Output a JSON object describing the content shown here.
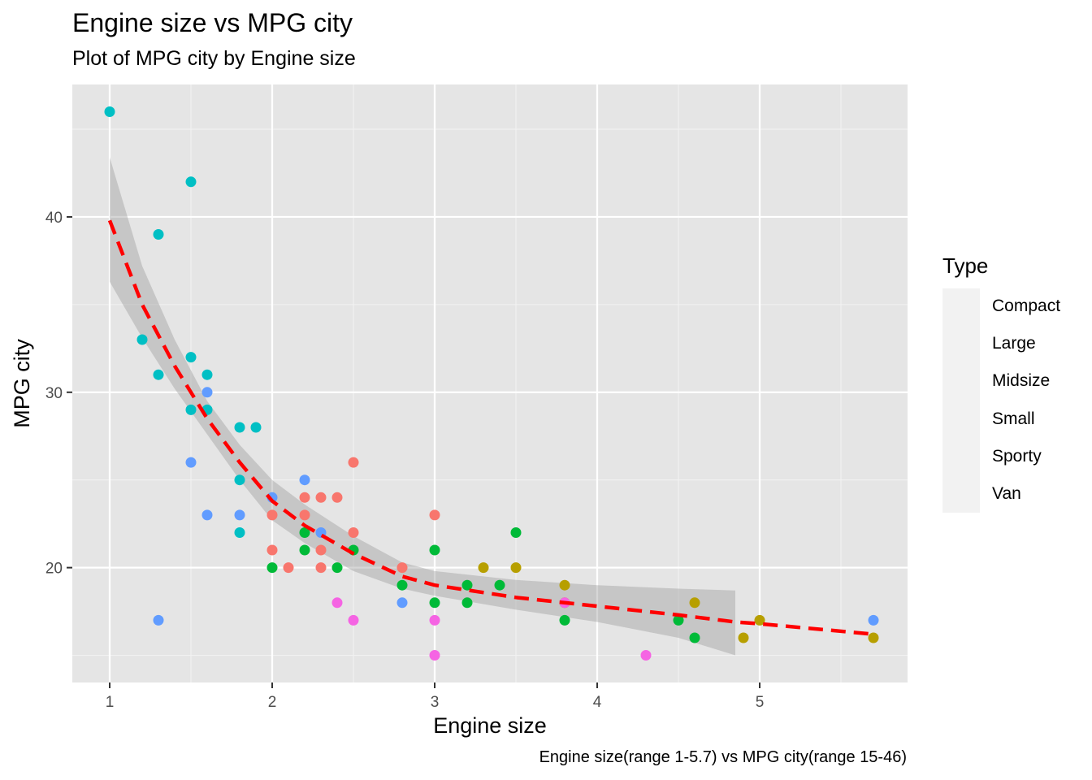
{
  "chart_data": {
    "type": "scatter",
    "title": "Engine size vs MPG city",
    "subtitle": "Plot of MPG city by Engine size",
    "caption": "Engine size(range 1-5.7) vs MPG city(range 15-46)",
    "xlabel": "Engine size",
    "ylabel": "MPG city",
    "xlim": [
      0.77,
      5.91
    ],
    "ylim": [
      13.45,
      47.55
    ],
    "x_ticks": [
      1,
      2,
      3,
      4,
      5
    ],
    "y_ticks": [
      20,
      30,
      40
    ],
    "grid": true,
    "legend": {
      "title": "Type",
      "position": "right",
      "entries": [
        {
          "label": "Compact",
          "color": "#F8766D"
        },
        {
          "label": "Large",
          "color": "#B79F00"
        },
        {
          "label": "Midsize",
          "color": "#00BA38"
        },
        {
          "label": "Small",
          "color": "#00BFC4"
        },
        {
          "label": "Sporty",
          "color": "#619CFF"
        },
        {
          "label": "Van",
          "color": "#F564E3"
        }
      ]
    },
    "series": [
      {
        "name": "Compact",
        "color": "#F8766D",
        "x": [
          2.0,
          2.0,
          2.1,
          2.2,
          2.2,
          2.3,
          2.3,
          2.3,
          2.4,
          2.5,
          2.5,
          2.8,
          3.0
        ],
        "y": [
          23,
          21,
          20,
          24,
          23,
          24,
          21,
          20,
          24,
          26,
          22,
          20,
          23
        ]
      },
      {
        "name": "Large",
        "color": "#B79F00",
        "x": [
          3.3,
          3.5,
          3.8,
          3.8,
          4.6,
          4.9,
          5.0,
          5.7
        ],
        "y": [
          20,
          20,
          19,
          18,
          18,
          16,
          17,
          16
        ]
      },
      {
        "name": "Midsize",
        "color": "#00BA38",
        "x": [
          2.0,
          2.2,
          2.2,
          2.4,
          2.5,
          2.8,
          3.0,
          3.0,
          3.2,
          3.2,
          3.4,
          3.5,
          3.8,
          4.5,
          4.6
        ],
        "y": [
          20,
          22,
          21,
          20,
          21,
          19,
          21,
          18,
          19,
          18,
          19,
          22,
          17,
          17,
          16
        ]
      },
      {
        "name": "Small",
        "color": "#00BFC4",
        "x": [
          1.0,
          1.2,
          1.3,
          1.3,
          1.5,
          1.5,
          1.5,
          1.6,
          1.6,
          1.8,
          1.8,
          1.8,
          1.9
        ],
        "y": [
          46,
          33,
          39,
          31,
          42,
          32,
          29,
          31,
          29,
          28,
          25,
          22,
          28
        ]
      },
      {
        "name": "Sporty",
        "color": "#619CFF",
        "x": [
          1.3,
          1.5,
          1.6,
          1.6,
          1.8,
          2.0,
          2.2,
          2.3,
          2.8,
          5.7
        ],
        "y": [
          17,
          26,
          30,
          23,
          23,
          24,
          25,
          22,
          18,
          17
        ]
      },
      {
        "name": "Van",
        "color": "#F564E3",
        "x": [
          2.4,
          2.5,
          3.0,
          3.0,
          3.8,
          4.3
        ],
        "y": [
          18,
          17,
          17,
          15,
          18,
          15
        ]
      }
    ],
    "loess": {
      "color": "#FF0000",
      "style": "dashed",
      "x": [
        1.0,
        1.2,
        1.4,
        1.6,
        1.8,
        2.0,
        2.2,
        2.5,
        2.8,
        3.0,
        3.5,
        4.0,
        4.5,
        4.85,
        5.0,
        5.7
      ],
      "y": [
        39.8,
        35.0,
        31.5,
        28.5,
        26.0,
        23.8,
        22.4,
        20.8,
        19.5,
        19.0,
        18.3,
        17.8,
        17.3,
        16.9,
        16.8,
        16.2
      ]
    },
    "confidence_band": {
      "color": "#999999",
      "x": [
        1.0,
        1.2,
        1.4,
        1.6,
        1.8,
        2.0,
        2.2,
        2.5,
        2.8,
        3.0,
        3.5,
        4.0,
        4.5,
        4.85
      ],
      "upper": [
        43.4,
        37.2,
        33.0,
        29.5,
        27.0,
        25.0,
        23.6,
        21.8,
        20.3,
        19.8,
        19.3,
        19.0,
        18.8,
        18.7
      ],
      "lower": [
        36.3,
        33.1,
        30.2,
        27.6,
        25.0,
        22.7,
        21.4,
        19.8,
        18.8,
        18.4,
        17.6,
        16.9,
        16.0,
        15.0
      ]
    }
  }
}
